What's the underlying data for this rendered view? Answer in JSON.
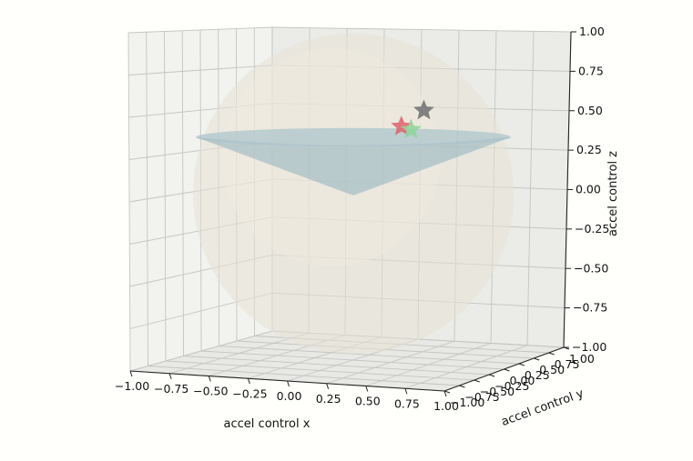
{
  "chart_data": {
    "type": "scatter",
    "projection": "3d",
    "xlabel": "accel control x",
    "ylabel": "accel control y",
    "zlabel": "accel control z",
    "xlim": [
      -1,
      1
    ],
    "ylim": [
      -1,
      1
    ],
    "zlim": [
      -1,
      1
    ],
    "x_ticks": [
      "−1.00",
      "−0.75",
      "−0.50",
      "−0.25",
      "0.00",
      "0.25",
      "0.50",
      "0.75",
      "1.00"
    ],
    "y_ticks": [
      "−1.00",
      "−0.75",
      "−0.50",
      "−0.25",
      "0.00",
      "0.25",
      "0.50",
      "0.75",
      "1.00"
    ],
    "z_ticks": [
      "−1.00",
      "−0.75",
      "−0.50",
      "−0.25",
      "0.00",
      "0.25",
      "0.50",
      "0.75",
      "1.00"
    ],
    "grid": true,
    "surfaces": [
      {
        "kind": "unit-sphere",
        "radius": 1.0,
        "color": "#e6e2d6",
        "alpha": 0.55
      },
      {
        "kind": "cone",
        "apex_z": 0.0,
        "rim_z": 0.2,
        "color": "#8fb0bd",
        "alpha": 0.55
      }
    ],
    "points": [
      {
        "marker": "star",
        "color": "#e0606a",
        "x": 0.3,
        "y": 0.0,
        "z": 0.42
      },
      {
        "marker": "star",
        "color": "#8fd39a",
        "x": 0.36,
        "y": 0.0,
        "z": 0.4
      },
      {
        "marker": "star",
        "color": "#6e6e6e",
        "x": 0.44,
        "y": 0.0,
        "z": 0.52
      }
    ]
  }
}
